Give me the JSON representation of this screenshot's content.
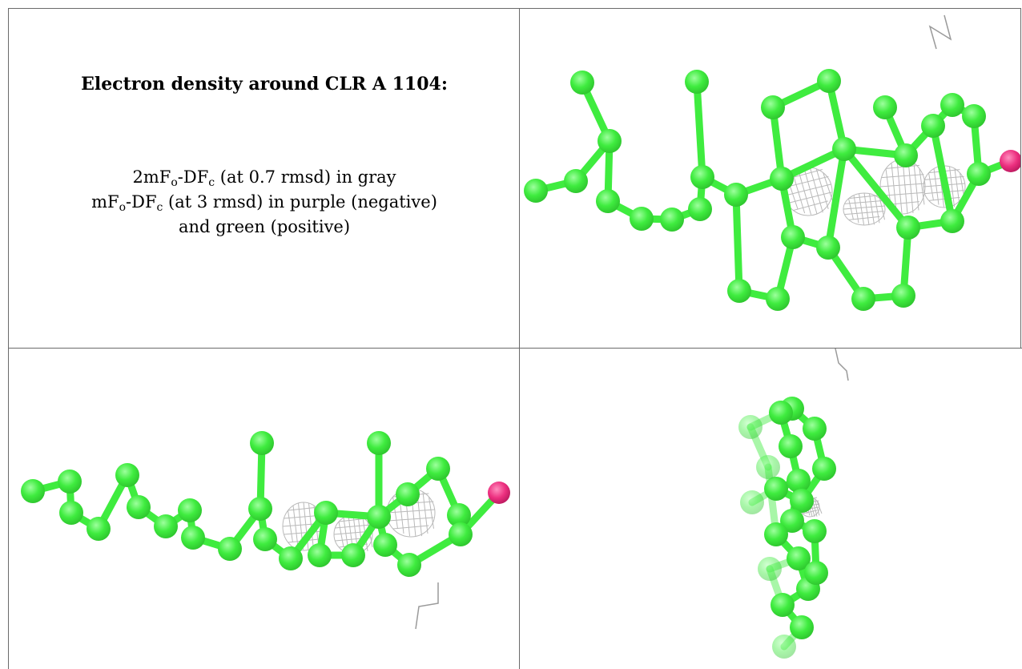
{
  "caption": {
    "title": "Electron density around CLR A 1104:",
    "line1_prefix": "2mF",
    "line1_sub_o": "o",
    "line1_mid": "-DF",
    "line1_sub_c": "c",
    "line1_suffix": " (at 0.7 rmsd) in gray",
    "line2_prefix": "mF",
    "line2_sub_o": "o",
    "line2_mid": "-DF",
    "line2_sub_c": "c",
    "line2_suffix": " (at 3 rmsd) in purple (negative)",
    "line3": "and green (positive)"
  },
  "colors": {
    "carbon": "#3fec3f",
    "carbon_dark": "#2fc82f",
    "oxygen": "#ec2f7f",
    "density_mesh": "#b9b9b9",
    "axis_glyph": "#9a9a9a",
    "grid_line": "#6a6a6a"
  },
  "panels": [
    {
      "id": "top-right-view",
      "view": "front"
    },
    {
      "id": "bottom-left-view",
      "view": "side"
    },
    {
      "id": "bottom-right-view",
      "view": "end-on"
    }
  ]
}
